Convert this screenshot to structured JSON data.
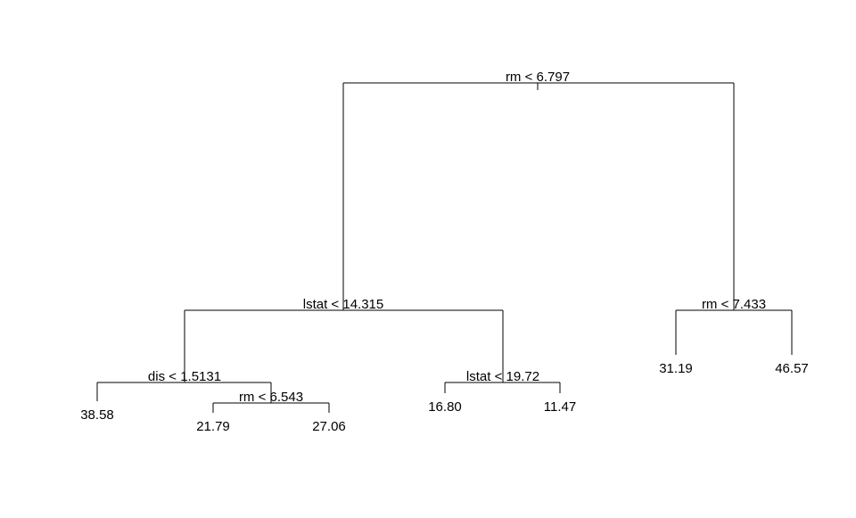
{
  "tree": {
    "colors": {
      "line": "#000000",
      "text": "#000000",
      "background": "#ffffff"
    },
    "root": {
      "id": "n1",
      "split": "rm < 6.797",
      "left": {
        "id": "n2",
        "split": "lstat < 14.315",
        "left": {
          "id": "n4",
          "split": "dis < 1.5131",
          "left": {
            "id": "n8",
            "leaf": "38.58"
          },
          "right": {
            "id": "n9",
            "split": "rm < 6.543",
            "left": {
              "id": "n18",
              "leaf": "21.79"
            },
            "right": {
              "id": "n19",
              "leaf": "27.06"
            }
          }
        },
        "right": {
          "id": "n5",
          "split": "lstat < 19.72",
          "left": {
            "id": "n10",
            "leaf": "16.80"
          },
          "right": {
            "id": "n11",
            "leaf": "11.47"
          }
        }
      },
      "right": {
        "id": "n3",
        "split": "rm < 7.433",
        "left": {
          "id": "n6",
          "leaf": "31.19"
        },
        "right": {
          "id": "n7",
          "leaf": "46.57"
        }
      }
    }
  }
}
